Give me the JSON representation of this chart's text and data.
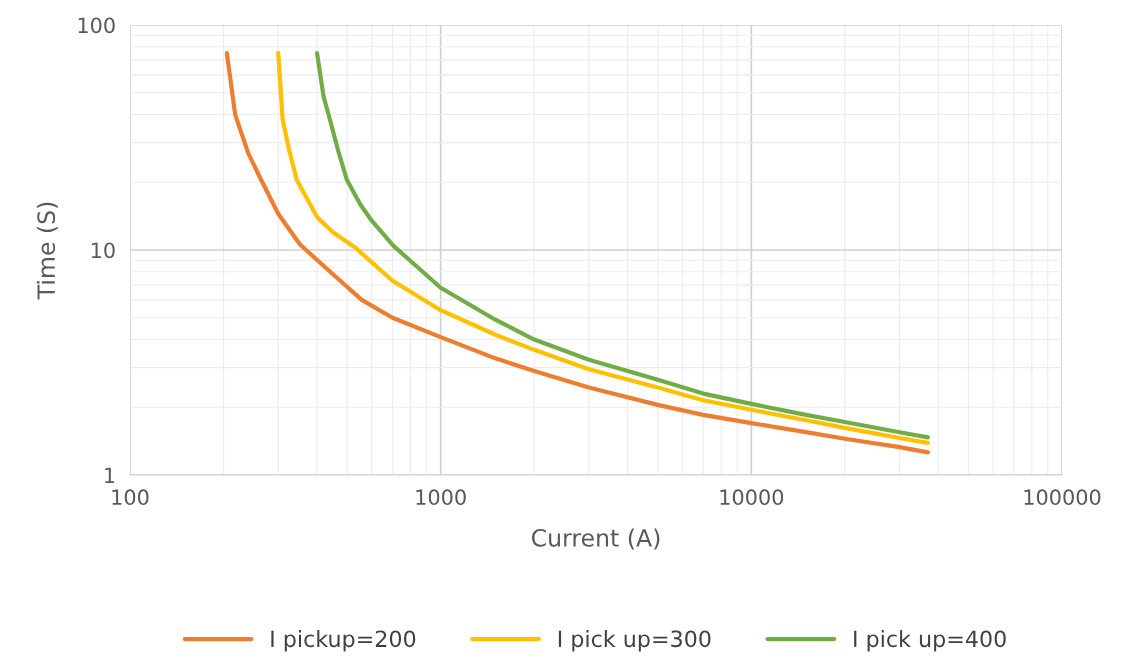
{
  "chart_data": {
    "type": "line",
    "xlabel": "Current (A)",
    "ylabel": "Time (S)",
    "log": "xy",
    "xlim": [
      100,
      100000
    ],
    "xticks": [
      100,
      1000,
      10000,
      100000
    ],
    "ylim": [
      1,
      100
    ],
    "yticks": [
      1,
      10,
      100
    ],
    "grid": true,
    "legend": "bottom",
    "marker": "none",
    "line_style": "solid",
    "series": [
      {
        "name": "I pickup=200",
        "color": "#ed7d31",
        "x": [
          205,
          218,
          240,
          262,
          300,
          352,
          450,
          557,
          700,
          1000,
          1500,
          2000,
          3000,
          5000,
          7000,
          10000,
          15000,
          20000,
          30000,
          37000
        ],
        "values": [
          75,
          40,
          27,
          21,
          14.5,
          10.6,
          7.8,
          6.0,
          5.0,
          4.1,
          3.3,
          2.9,
          2.45,
          2.05,
          1.85,
          1.7,
          1.55,
          1.45,
          1.33,
          1.26
        ]
      },
      {
        "name": "I pick up=300",
        "color": "#ffc000",
        "x": [
          300,
          310,
          325,
          344,
          400,
          450,
          533,
          700,
          1000,
          1500,
          2000,
          3000,
          5000,
          7000,
          10000,
          15000,
          20000,
          30000,
          37000
        ],
        "values": [
          75,
          38,
          28,
          20.5,
          14,
          12,
          10.2,
          7.3,
          5.4,
          4.2,
          3.6,
          2.95,
          2.45,
          2.15,
          1.95,
          1.75,
          1.62,
          1.46,
          1.39
        ]
      },
      {
        "name": "I pick up=400",
        "color": "#70ad47",
        "x": [
          400,
          420,
          440,
          470,
          499,
          550,
          600,
          706,
          850,
          1000,
          1500,
          2000,
          3000,
          5000,
          7000,
          10000,
          15000,
          20000,
          30000,
          37000
        ],
        "values": [
          75,
          48,
          38,
          27,
          20.5,
          16,
          13.5,
          10.4,
          8.3,
          6.8,
          4.9,
          4.0,
          3.25,
          2.65,
          2.3,
          2.07,
          1.85,
          1.72,
          1.55,
          1.47
        ]
      }
    ]
  }
}
